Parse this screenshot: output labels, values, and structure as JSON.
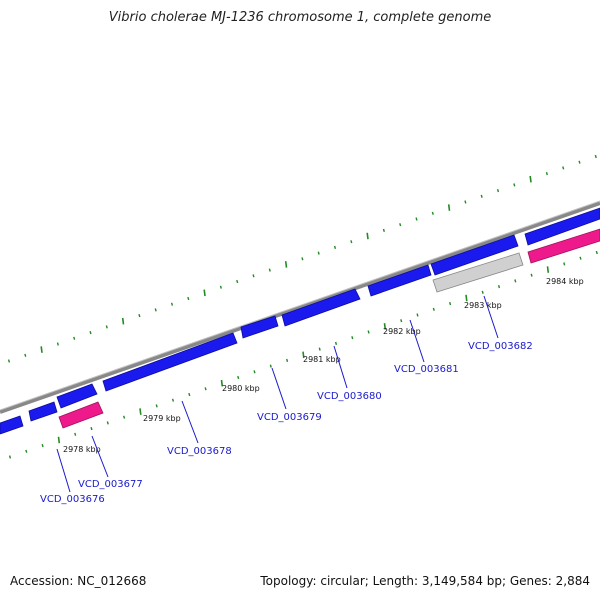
{
  "title": "Vibrio cholerae MJ-1236 chromosome 1, complete genome",
  "accession": "Accession: NC_012668",
  "summary": "Topology: circular; Length: 3,149,584 bp; Genes: 2,884",
  "colors": {
    "forward_gene": "#1a1aee",
    "reverse_gene": "#ee1a8c",
    "other_feature": "#c8c8c8",
    "backbone": "#888888",
    "tick": "#228b22",
    "label": "#1a1acd"
  },
  "scale_labels": [
    "2978 kbp",
    "2979 kbp",
    "2980 kbp",
    "2981 kbp",
    "2982 kbp",
    "2983 kbp",
    "2984 kbp"
  ],
  "genes": [
    {
      "locus": "VCD_003676",
      "labeled": true
    },
    {
      "locus": "VCD_003677",
      "labeled": true
    },
    {
      "locus": "VCD_003678",
      "labeled": true
    },
    {
      "locus": "VCD_003679",
      "labeled": true
    },
    {
      "locus": "VCD_003680",
      "labeled": true
    },
    {
      "locus": "VCD_003681",
      "labeled": true
    },
    {
      "locus": "VCD_003682",
      "labeled": true
    }
  ]
}
